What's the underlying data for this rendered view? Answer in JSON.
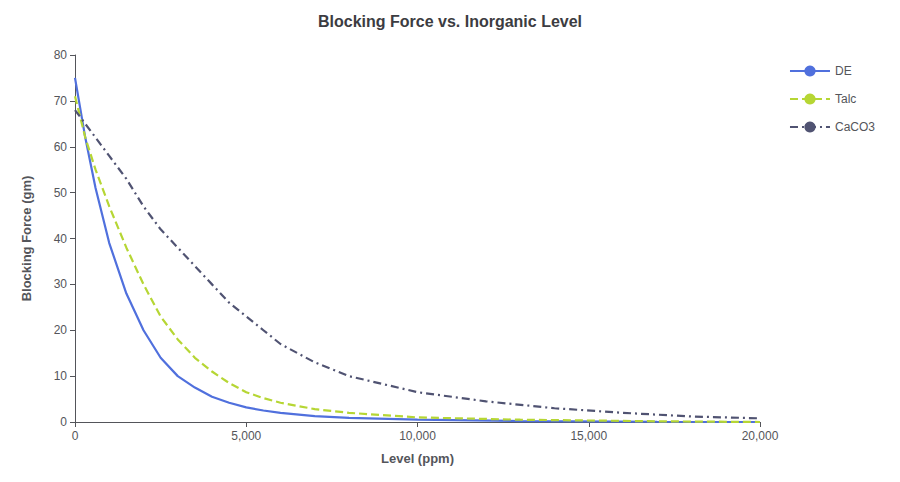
{
  "chart_data": {
    "type": "line",
    "title": "Blocking Force vs. Inorganic Level",
    "xlabel": "Level (ppm)",
    "ylabel": "Blocking Force (gm)",
    "xlim": [
      0,
      20000
    ],
    "ylim": [
      0,
      80
    ],
    "xticks": [
      0,
      {
        "value": 5000,
        "label": "5,000"
      },
      {
        "value": 10000,
        "label": "10,000"
      },
      {
        "value": 15000,
        "label": "15,000"
      },
      {
        "value": 20000,
        "label": "20,000"
      }
    ],
    "yticks": [
      0,
      10,
      20,
      30,
      40,
      50,
      60,
      70,
      80
    ],
    "grid": false,
    "legend": "right",
    "series": [
      {
        "name": "DE",
        "line_style": "solid",
        "x": [
          0,
          300,
          600,
          1000,
          1500,
          2000,
          2500,
          3000,
          3500,
          4000,
          4500,
          5000,
          5500,
          6000,
          7000,
          8000,
          10000,
          13000,
          17000,
          20000
        ],
        "values": [
          75,
          62,
          51,
          39,
          28,
          20,
          14,
          10,
          7.5,
          5.5,
          4.2,
          3.2,
          2.5,
          2.0,
          1.3,
          0.9,
          0.5,
          0.2,
          0.05,
          0.0
        ]
      },
      {
        "name": "Talc",
        "line_style": "dashed",
        "x": [
          0,
          300,
          600,
          1000,
          1500,
          2000,
          2500,
          3000,
          3500,
          4000,
          4500,
          5000,
          5500,
          6000,
          7000,
          8000,
          10000,
          13000,
          17000,
          20000
        ],
        "values": [
          71,
          62,
          55,
          47,
          38,
          30,
          23,
          18,
          14,
          11,
          8.5,
          6.5,
          5.2,
          4.2,
          2.8,
          2.0,
          1.0,
          0.5,
          0.15,
          0.0
        ]
      },
      {
        "name": "CaCO3",
        "line_style": "dashdot",
        "x": [
          0,
          300,
          600,
          1000,
          1500,
          2000,
          2500,
          3000,
          3500,
          4000,
          4500,
          5000,
          5500,
          6000,
          7000,
          8000,
          10000,
          12000,
          14000,
          16000,
          18000,
          20000
        ],
        "values": [
          68,
          65,
          62,
          58,
          53,
          47,
          42,
          38,
          34,
          30,
          26,
          23,
          20,
          17,
          13,
          10,
          6.5,
          4.5,
          3.0,
          2.0,
          1.2,
          0.8
        ]
      }
    ]
  }
}
